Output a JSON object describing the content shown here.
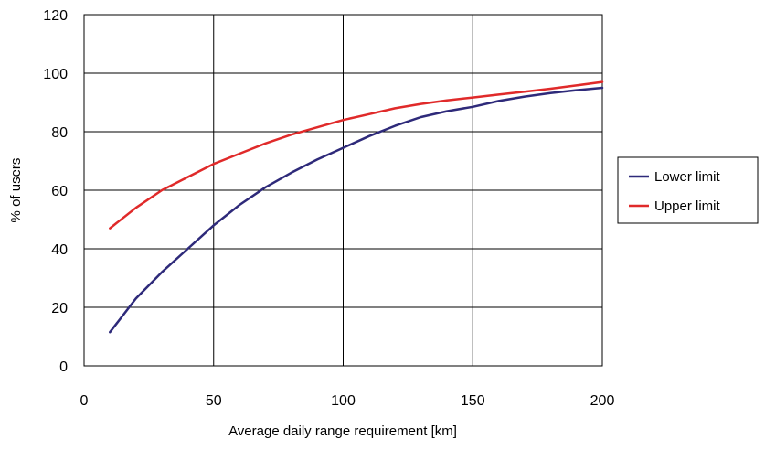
{
  "chart_data": {
    "type": "line",
    "title": "",
    "xlabel": "Average daily range requirement [km]",
    "ylabel": "% of users",
    "xlim": [
      0,
      200
    ],
    "ylim": [
      0,
      120
    ],
    "xticks": [
      0,
      50,
      100,
      150,
      200
    ],
    "yticks": [
      0,
      20,
      40,
      60,
      80,
      100,
      120
    ],
    "grid": true,
    "legend_position": "right",
    "x": [
      10,
      20,
      30,
      40,
      50,
      60,
      70,
      80,
      90,
      100,
      110,
      120,
      130,
      140,
      150,
      160,
      170,
      180,
      190,
      200
    ],
    "series": [
      {
        "name": "Lower limit",
        "color": "#2e2a7a",
        "values": [
          11.5,
          23,
          32,
          40,
          48,
          55,
          61,
          66,
          70.5,
          74.5,
          78.5,
          82,
          85,
          87,
          88.5,
          90.5,
          92,
          93.2,
          94.2,
          95
        ]
      },
      {
        "name": "Upper limit",
        "color": "#e02a2a",
        "values": [
          47,
          54,
          60,
          64.5,
          69,
          72.5,
          76,
          79,
          81.5,
          84,
          86,
          88,
          89.5,
          90.7,
          91.7,
          92.7,
          93.7,
          94.7,
          95.8,
          97
        ]
      }
    ]
  }
}
